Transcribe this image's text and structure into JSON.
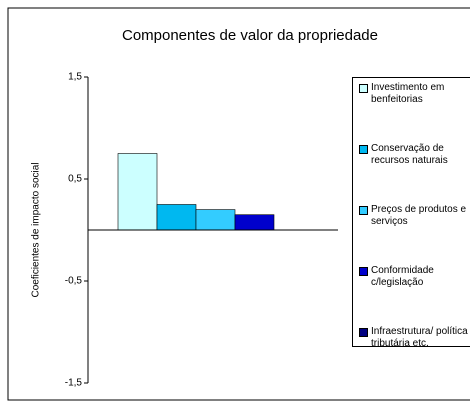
{
  "chart_data": {
    "type": "bar",
    "title": "Componentes de valor da propriedade",
    "y_label": "Coeficientes de impacto social",
    "categories": [
      null
    ],
    "series": [
      {
        "name": "Investimento em benfeitorias",
        "color": "#ccffff",
        "values": [
          0.75
        ]
      },
      {
        "name": "Conservação de recursos naturais",
        "color": "#00b8f0",
        "values": [
          0.25
        ]
      },
      {
        "name": "Preços de produtos e serviços",
        "color": "#33ccff",
        "values": [
          0.2
        ]
      },
      {
        "name": "Conformidade c/legislação",
        "color": "#0000cc",
        "values": [
          0.15
        ]
      },
      {
        "name": "Infraestrutura/ política tributária etc.",
        "color": "#000080",
        "values": [
          0
        ]
      }
    ],
    "ylim": [
      -1.5,
      1.5
    ],
    "yticks": [
      {
        "value": 1.5,
        "label": "1,5"
      },
      {
        "value": 0.5,
        "label": "0,5"
      },
      {
        "value": -0.5,
        "label": "-0,5"
      },
      {
        "value": -1.5,
        "label": "-1,5"
      }
    ],
    "legend": "right"
  }
}
